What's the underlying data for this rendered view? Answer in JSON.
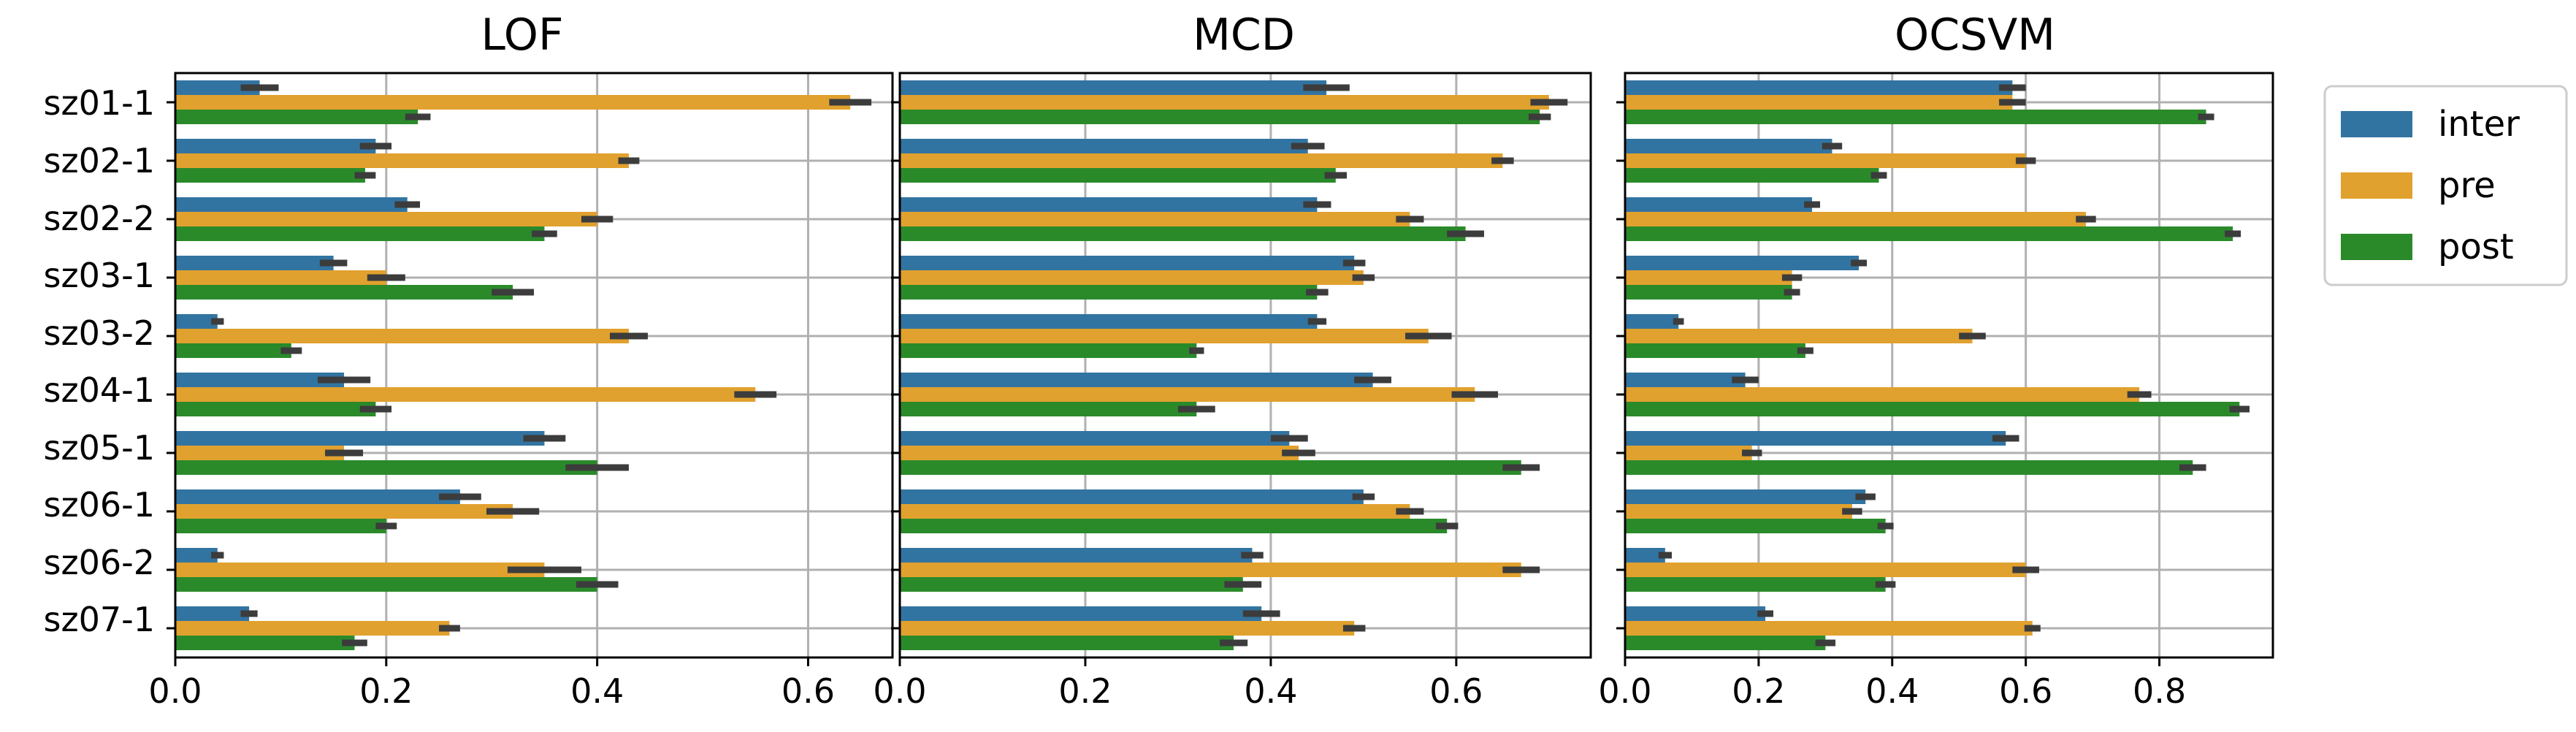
{
  "colors": {
    "inter": "#3274a1",
    "pre": "#e1a12e",
    "post": "#2a8a2a",
    "grid": "#b0b0b0",
    "err": "#3c3c3c"
  },
  "chart_data": [
    {
      "type": "bar",
      "orientation": "horizontal",
      "title": "LOF",
      "categories": [
        "sz01-1",
        "sz02-1",
        "sz02-2",
        "sz03-1",
        "sz03-2",
        "sz04-1",
        "sz05-1",
        "sz06-1",
        "sz06-2",
        "sz07-1"
      ],
      "xlim": [
        0,
        0.68
      ],
      "xticks": [
        "0.0",
        "0.2",
        "0.4",
        "0.6"
      ],
      "xtick_values": [
        0,
        0.2,
        0.4,
        0.6
      ],
      "grid": true,
      "series": [
        {
          "name": "inter",
          "values": [
            0.08,
            0.19,
            0.22,
            0.15,
            0.04,
            0.16,
            0.35,
            0.27,
            0.04,
            0.07
          ],
          "errors": [
            0.018,
            0.015,
            0.012,
            0.013,
            0.006,
            0.025,
            0.02,
            0.02,
            0.006,
            0.008
          ]
        },
        {
          "name": "pre",
          "values": [
            0.64,
            0.43,
            0.4,
            0.2,
            0.43,
            0.55,
            0.16,
            0.32,
            0.35,
            0.26
          ],
          "errors": [
            0.02,
            0.01,
            0.015,
            0.018,
            0.018,
            0.02,
            0.018,
            0.025,
            0.035,
            0.01
          ]
        },
        {
          "name": "post",
          "values": [
            0.23,
            0.18,
            0.35,
            0.32,
            0.11,
            0.19,
            0.4,
            0.2,
            0.4,
            0.17
          ],
          "errors": [
            0.012,
            0.01,
            0.012,
            0.02,
            0.01,
            0.015,
            0.03,
            0.01,
            0.02,
            0.012
          ]
        }
      ]
    },
    {
      "type": "bar",
      "orientation": "horizontal",
      "title": "MCD",
      "categories": [
        "sz01-1",
        "sz02-1",
        "sz02-2",
        "sz03-1",
        "sz03-2",
        "sz04-1",
        "sz05-1",
        "sz06-1",
        "sz06-2",
        "sz07-1"
      ],
      "xlim": [
        0,
        0.745
      ],
      "xticks": [
        "0.0",
        "0.2",
        "0.4",
        "0.6"
      ],
      "xtick_values": [
        0,
        0.2,
        0.4,
        0.6
      ],
      "grid": true,
      "series": [
        {
          "name": "inter",
          "values": [
            0.46,
            0.44,
            0.45,
            0.49,
            0.45,
            0.51,
            0.42,
            0.5,
            0.38,
            0.39
          ],
          "errors": [
            0.025,
            0.018,
            0.015,
            0.012,
            0.01,
            0.02,
            0.02,
            0.012,
            0.012,
            0.02
          ]
        },
        {
          "name": "pre",
          "values": [
            0.7,
            0.65,
            0.55,
            0.5,
            0.57,
            0.62,
            0.43,
            0.55,
            0.67,
            0.49
          ],
          "errors": [
            0.02,
            0.012,
            0.015,
            0.012,
            0.025,
            0.025,
            0.018,
            0.015,
            0.02,
            0.012
          ]
        },
        {
          "name": "post",
          "values": [
            0.69,
            0.47,
            0.61,
            0.45,
            0.32,
            0.32,
            0.67,
            0.59,
            0.37,
            0.36
          ],
          "errors": [
            0.012,
            0.012,
            0.02,
            0.012,
            0.008,
            0.02,
            0.02,
            0.012,
            0.02,
            0.015
          ]
        }
      ]
    },
    {
      "type": "bar",
      "orientation": "horizontal",
      "title": "OCSVM",
      "categories": [
        "sz01-1",
        "sz02-1",
        "sz02-2",
        "sz03-1",
        "sz03-2",
        "sz04-1",
        "sz05-1",
        "sz06-1",
        "sz06-2",
        "sz07-1"
      ],
      "xlim": [
        0,
        0.97
      ],
      "xticks": [
        "0.0",
        "0.2",
        "0.4",
        "0.6",
        "0.8"
      ],
      "xtick_values": [
        0,
        0.2,
        0.4,
        0.6,
        0.8
      ],
      "grid": true,
      "series": [
        {
          "name": "inter",
          "values": [
            0.58,
            0.31,
            0.28,
            0.35,
            0.08,
            0.18,
            0.57,
            0.36,
            0.06,
            0.21
          ],
          "errors": [
            0.02,
            0.015,
            0.012,
            0.012,
            0.008,
            0.02,
            0.02,
            0.015,
            0.01,
            0.012
          ]
        },
        {
          "name": "pre",
          "values": [
            0.58,
            0.6,
            0.69,
            0.25,
            0.52,
            0.77,
            0.19,
            0.34,
            0.6,
            0.61
          ],
          "errors": [
            0.02,
            0.015,
            0.015,
            0.015,
            0.02,
            0.018,
            0.015,
            0.015,
            0.02,
            0.012
          ]
        },
        {
          "name": "post",
          "values": [
            0.87,
            0.38,
            0.91,
            0.25,
            0.27,
            0.92,
            0.85,
            0.39,
            0.39,
            0.3
          ],
          "errors": [
            0.012,
            0.012,
            0.012,
            0.012,
            0.012,
            0.015,
            0.02,
            0.012,
            0.015,
            0.015
          ]
        }
      ]
    }
  ],
  "legend": {
    "position": "right",
    "entries": [
      "inter",
      "pre",
      "post"
    ]
  }
}
